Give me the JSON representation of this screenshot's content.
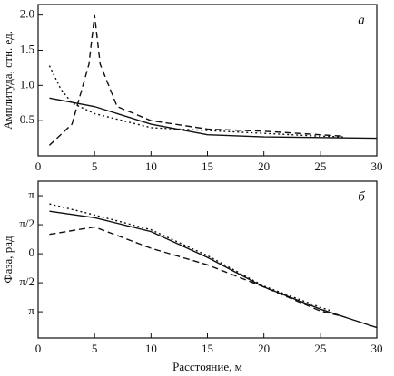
{
  "chart_data": [
    {
      "type": "line",
      "annotation": "а",
      "ylabel": "Амплитуда, отн. ед.",
      "xlim": [
        0,
        30
      ],
      "xticks": [
        0,
        5,
        10,
        15,
        20,
        25,
        30
      ],
      "ylim": [
        0,
        2.15
      ],
      "yticks": [
        0.5,
        {
          "value": 1,
          "label": "1.0"
        },
        1.5,
        {
          "value": 2,
          "label": "2.0"
        }
      ],
      "series": [
        {
          "color": "#111111",
          "dash": "solid",
          "x": [
            1,
            5,
            10,
            15,
            20,
            25,
            30
          ],
          "values": [
            0.82,
            0.7,
            0.45,
            0.3,
            0.27,
            0.26,
            0.25
          ]
        },
        {
          "color": "#111111",
          "dash": "dashed",
          "x": [
            1,
            3,
            4.5,
            5,
            5.5,
            7,
            10,
            15,
            20,
            25,
            27
          ],
          "values": [
            0.15,
            0.45,
            1.3,
            2.0,
            1.3,
            0.7,
            0.5,
            0.38,
            0.35,
            0.3,
            0.28
          ]
        },
        {
          "color": "#111111",
          "dash": "dotted",
          "x": [
            1,
            2,
            3,
            5,
            10,
            15,
            20,
            25,
            27
          ],
          "values": [
            1.28,
            0.95,
            0.75,
            0.6,
            0.4,
            0.36,
            0.32,
            0.28,
            0.27
          ]
        }
      ]
    },
    {
      "type": "line",
      "annotation": "б",
      "ylabel": "Фаза, рад",
      "xlabel": "Расстояние, м",
      "xlim": [
        0,
        30
      ],
      "xticks": [
        0,
        5,
        10,
        15,
        20,
        25,
        30
      ],
      "ylim": [
        -4.56,
        3.93
      ],
      "yticks": [
        {
          "value": -3.1416,
          "label": "π"
        },
        {
          "value": -1.5708,
          "label": "π/2"
        },
        0,
        {
          "value": 1.5708,
          "label": "π/2"
        },
        {
          "value": 3.1416,
          "label": "π"
        }
      ],
      "series": [
        {
          "color": "#111111",
          "dash": "solid",
          "x": [
            1,
            5,
            10,
            15,
            20,
            25,
            30
          ],
          "values": [
            2.3,
            1.95,
            1.2,
            -0.2,
            -1.8,
            -3.0,
            -4.0
          ]
        },
        {
          "color": "#111111",
          "dash": "dashed",
          "x": [
            1,
            5,
            10,
            15,
            20,
            25,
            27
          ],
          "values": [
            1.05,
            1.45,
            0.3,
            -0.6,
            -1.8,
            -3.1,
            -3.4
          ]
        },
        {
          "color": "#111111",
          "dash": "dotted",
          "x": [
            1,
            5,
            10,
            15,
            20,
            25,
            26
          ],
          "values": [
            2.7,
            2.1,
            1.3,
            -0.1,
            -1.75,
            -2.9,
            -3.1
          ]
        }
      ]
    }
  ]
}
